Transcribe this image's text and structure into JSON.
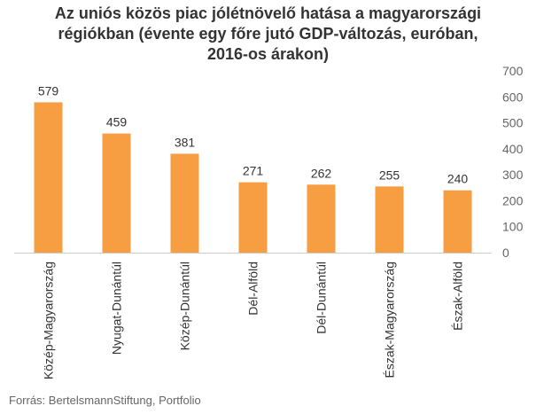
{
  "title_lines": [
    "Az uniós közös piac jólétnövelő hatása a magyarországi",
    "régiókban (évente egy főre jutó GDP-változás, euróban,",
    "2016-os árakon)"
  ],
  "source": "Forrás: BertelsmannStiftung, Portfolio",
  "colors": {
    "bar": "#F79E43",
    "text": "#333333",
    "axis": "#666666",
    "grid": "#e6e6e6"
  },
  "chart_data": {
    "type": "bar",
    "title": "Az uniós közös piac jólétnövelő hatása a magyarországi régiókban (évente egy főre jutó GDP-változás, euróban, 2016-os árakon)",
    "categories": [
      "Közép-Magyarország",
      "Nyugat-Dunántúl",
      "Közép-Dunántúl",
      "Dél-Alföld",
      "Dél-Dunántúl",
      "Észak-Magyarország",
      "Észak-Alföld"
    ],
    "values": [
      579,
      459,
      381,
      271,
      262,
      255,
      240
    ],
    "data_labels": [
      "579",
      "459",
      "381",
      "271",
      "262",
      "255",
      "240"
    ],
    "y_ticks": [
      "0",
      "100",
      "200",
      "300",
      "400",
      "500",
      "600",
      "700"
    ],
    "ylim": [
      0,
      700
    ],
    "y_axis_side": "right",
    "grid": false,
    "legend": "none"
  }
}
